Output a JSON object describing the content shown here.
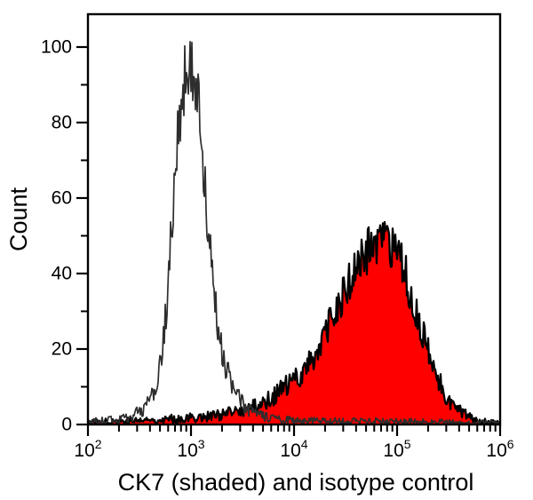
{
  "figure": {
    "background": "#ffffff",
    "axis_color": "#000000"
  },
  "chart_data": {
    "type": "line",
    "subtype": "flow-cytometry-histogram-overlay",
    "title": "",
    "xlabel": "CK7 (shaded) and isotype control",
    "ylabel": "Count",
    "x_scale": "log10",
    "x_log_range": [
      2,
      6
    ],
    "x_tick_base": "10",
    "y_range": [
      0,
      108.7
    ],
    "grid": "off",
    "legend": "none",
    "x_ticks": {
      "major_exponents": [
        2,
        3,
        4,
        5,
        6
      ],
      "minor_mantissas": [
        2,
        3,
        4,
        5,
        6,
        7,
        8,
        9
      ]
    },
    "y_ticks": {
      "major": [
        0,
        20,
        40,
        60,
        80,
        100
      ],
      "minor": [
        10,
        30,
        50,
        70,
        90
      ]
    },
    "series": [
      {
        "name": "CK7 (shaded)",
        "style": "shaded",
        "fill_color": "#fe0000",
        "line_color": "#000000",
        "line_width": 2.3,
        "peak_log10_x": 4.84,
        "peak_count": 54,
        "noise_seed": 77,
        "noise_amp": 0.95,
        "clamp_max": 54,
        "anchors_log10x": [
          2.0,
          2.3,
          2.6,
          2.9,
          3.1,
          3.3,
          3.45,
          3.58,
          3.7,
          3.8,
          3.9,
          4.0,
          4.1,
          4.2,
          4.3,
          4.4,
          4.5,
          4.6,
          4.7,
          4.78,
          4.84,
          4.92,
          5.0,
          5.06,
          5.12,
          5.18,
          5.24,
          5.3,
          5.36,
          5.42,
          5.48,
          5.55,
          5.62,
          5.7,
          5.8,
          5.9,
          6.0
        ],
        "anchors_count": [
          0.6,
          0.9,
          1.2,
          1.6,
          2.0,
          2.6,
          3.4,
          4.4,
          5.8,
          7.5,
          9.5,
          11.5,
          14.5,
          18.5,
          23.5,
          29.5,
          35.5,
          41,
          45.5,
          48,
          48.5,
          47,
          44,
          41,
          36,
          30.5,
          24.5,
          19,
          14.5,
          10.5,
          7.5,
          5,
          3.2,
          1.9,
          1.1,
          0.6,
          0.3
        ]
      },
      {
        "name": "isotype control",
        "style": "open",
        "fill_color": "none",
        "line_color": "#2e2e2e",
        "line_width": 1.7,
        "peak_log10_x": 2.98,
        "peak_count": 103,
        "noise_seed": 20,
        "noise_amp": 1.0,
        "clamp_max": 103.5,
        "anchors_log10x": [
          2.0,
          2.15,
          2.3,
          2.42,
          2.52,
          2.6,
          2.66,
          2.71,
          2.76,
          2.79,
          2.82,
          2.85,
          2.88,
          2.91,
          2.94,
          2.97,
          3.0,
          3.03,
          3.06,
          3.09,
          3.12,
          3.15,
          3.18,
          3.21,
          3.25,
          3.29,
          3.34,
          3.4,
          3.47,
          3.55,
          3.64,
          3.74,
          3.86,
          4.1,
          4.5,
          5.0,
          5.5,
          6.0
        ],
        "anchors_count": [
          0.8,
          1.0,
          1.4,
          2.2,
          3.6,
          6,
          10,
          16,
          30,
          42,
          55,
          67,
          78,
          87,
          92,
          96,
          97,
          93,
          88,
          80,
          70,
          57,
          47,
          38,
          29,
          21,
          15,
          10,
          6.5,
          4.2,
          2.7,
          1.8,
          1.3,
          1.0,
          0.9,
          0.8,
          0.6,
          0.4
        ]
      }
    ]
  }
}
